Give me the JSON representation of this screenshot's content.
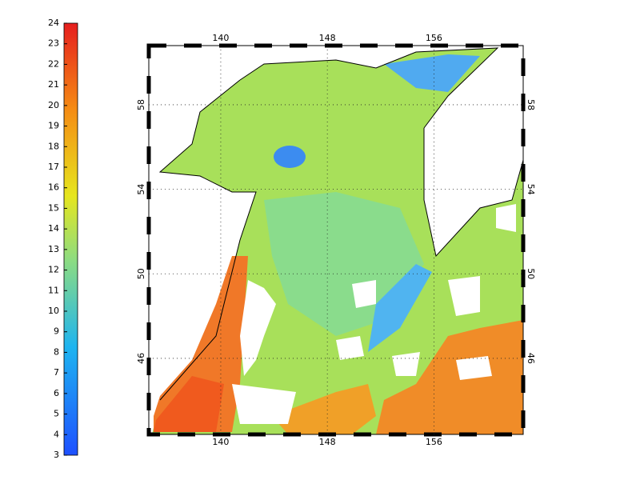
{
  "colorbar": {
    "lim": [
      3,
      24
    ],
    "ticks": [
      3,
      4,
      5,
      6,
      7,
      8,
      9,
      10,
      11,
      12,
      13,
      14,
      15,
      16,
      17,
      18,
      19,
      20,
      21,
      22,
      23,
      24
    ]
  },
  "map": {
    "xlim": [
      134.6,
      162.7
    ],
    "ylim": [
      42.4,
      60.8
    ],
    "xticks": [
      140,
      148,
      156
    ],
    "yticks": [
      46,
      50,
      54,
      58
    ],
    "grid": true
  }
}
